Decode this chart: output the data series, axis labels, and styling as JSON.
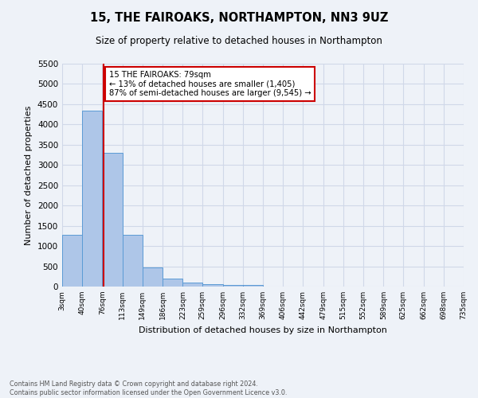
{
  "title": "15, THE FAIROAKS, NORTHAMPTON, NN3 9UZ",
  "subtitle": "Size of property relative to detached houses in Northampton",
  "xlabel": "Distribution of detached houses by size in Northampton",
  "ylabel": "Number of detached properties",
  "footer_line1": "Contains HM Land Registry data © Crown copyright and database right 2024.",
  "footer_line2": "Contains public sector information licensed under the Open Government Licence v3.0.",
  "annotation_title": "15 THE FAIROAKS: 79sqm",
  "annotation_line2": "← 13% of detached houses are smaller (1,405)",
  "annotation_line3": "87% of semi-detached houses are larger (9,545) →",
  "property_line_x": 79,
  "bar_edges": [
    3,
    40,
    76,
    113,
    149,
    186,
    223,
    259,
    296,
    332,
    369,
    406,
    442,
    479,
    515,
    552,
    589,
    625,
    662,
    698,
    735
  ],
  "bar_heights": [
    1270,
    4350,
    3300,
    1280,
    480,
    195,
    105,
    65,
    45,
    35,
    0,
    0,
    0,
    0,
    0,
    0,
    0,
    0,
    0,
    0
  ],
  "bar_color": "#aec6e8",
  "bar_edgecolor": "#5b9bd5",
  "property_line_color": "#cc0000",
  "annotation_box_edgecolor": "#cc0000",
  "ylim": [
    0,
    5500
  ],
  "yticks": [
    0,
    500,
    1000,
    1500,
    2000,
    2500,
    3000,
    3500,
    4000,
    4500,
    5000,
    5500
  ],
  "grid_color": "#d0d8e8",
  "background_color": "#eef2f8",
  "axes_bg_color": "#eef2f8"
}
